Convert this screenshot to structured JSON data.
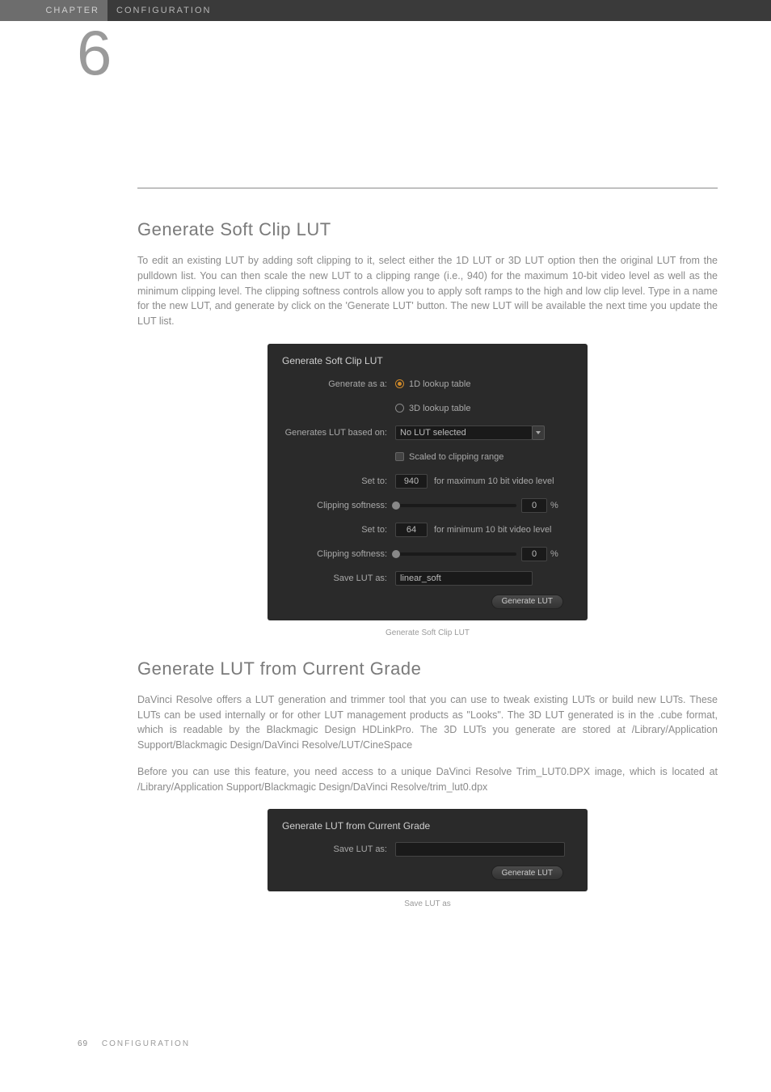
{
  "header": {
    "chapter_tab": "CHAPTER",
    "section": "CONFIGURATION",
    "chapter_number": "6"
  },
  "section1": {
    "title": "Generate Soft Clip LUT",
    "body": "To edit an existing LUT by adding soft clipping to it, select either the 1D LUT or 3D LUT option then the original LUT from the pulldown list. You can then scale the new LUT to a clipping range (i.e., 940) for the maximum 10-bit video level as well as the minimum clipping level. The clipping softness controls allow you to apply soft ramps to the high and low clip level. Type in a name for the new LUT, and generate by click on the 'Generate LUT' button. The new LUT will be available the next time you update the LUT list."
  },
  "softclip_panel": {
    "title": "Generate Soft Clip LUT",
    "generate_as_label": "Generate as a:",
    "radio_1d": "1D lookup table",
    "radio_3d": "3D lookup table",
    "based_on_label": "Generates LUT based on:",
    "based_on_value": "No LUT selected",
    "scaled_label": "Scaled to clipping range",
    "set_to_label": "Set to:",
    "max_value": "940",
    "max_suffix": "for maximum 10 bit video level",
    "clip_soft_label": "Clipping softness:",
    "clip_soft_val1": "0",
    "pct": "%",
    "min_value": "64",
    "min_suffix": "for minimum 10 bit video level",
    "clip_soft_val2": "0",
    "save_label": "Save LUT as:",
    "save_value": "linear_soft",
    "button": "Generate LUT",
    "caption": "Generate Soft Clip LUT"
  },
  "section2": {
    "title": "Generate LUT from Current Grade",
    "body1": "DaVinci Resolve offers a LUT generation and trimmer tool that you can use to tweak existing LUTs or build new LUTs. These LUTs can be used internally or for other LUT management products as \"Looks\". The 3D LUT generated is in the .cube format, which is readable by the Blackmagic Design HDLinkPro. The 3D LUTs you generate are stored at /Library/Application Support/Blackmagic Design/DaVinci Resolve/LUT/CineSpace",
    "body2": "Before you can use this feature, you need access to a unique DaVinci Resolve Trim_LUT0.DPX image, which is located at /Library/Application Support/Blackmagic Design/DaVinci Resolve/trim_lut0.dpx"
  },
  "saveas_panel": {
    "title": "Generate LUT from Current Grade",
    "save_label": "Save LUT as:",
    "save_value": "",
    "button": "Generate LUT",
    "caption": "Save LUT as"
  },
  "footer": {
    "page": "69",
    "section": "CONFIGURATION"
  },
  "colors": {
    "header_bar": "#3a3a3a",
    "chapter_tab": "#6d6d6d",
    "panel_bg": "#2a2a2a",
    "accent": "#d08a2a",
    "body_text": "#8a8a8a"
  }
}
